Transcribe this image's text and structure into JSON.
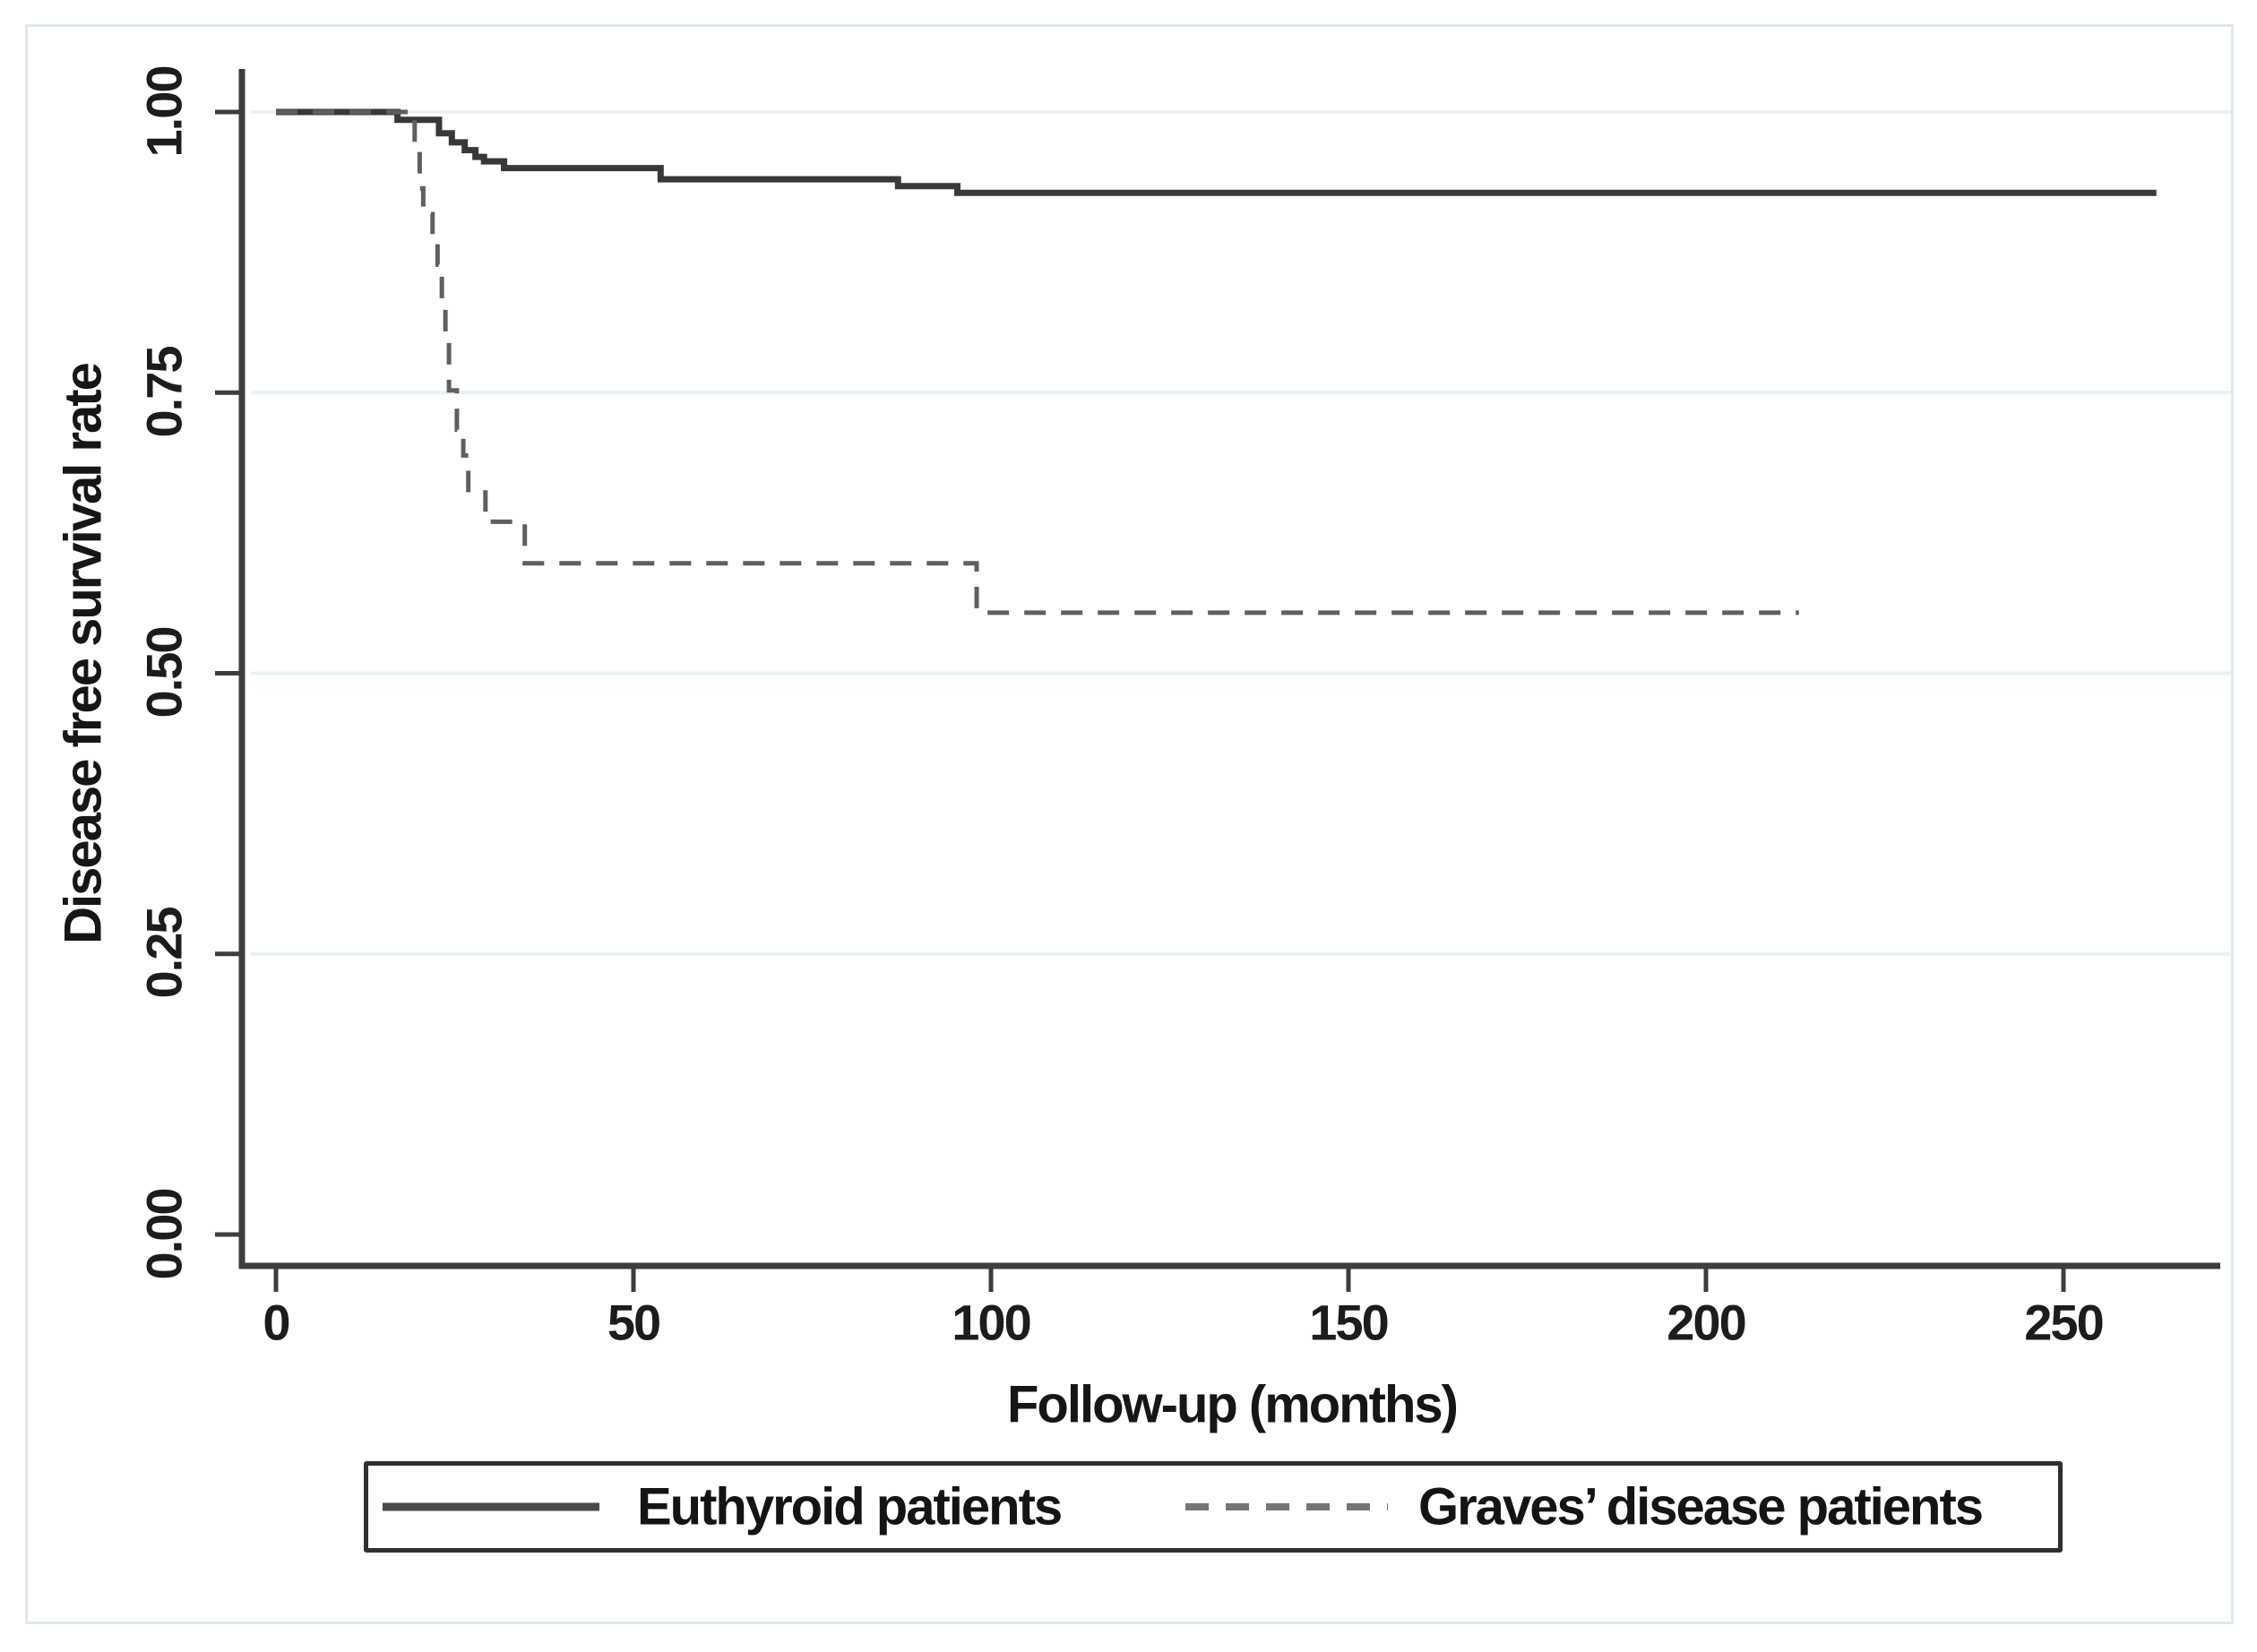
{
  "figure": {
    "kind": "kaplan-meier-survival-plot",
    "background": "#ffffff",
    "frame_border_color": "#dde9ee",
    "axis_color": "#3d3d3d",
    "grid_color": "#e8f2f3",
    "text_color": "#161616"
  },
  "chart_data": {
    "type": "line",
    "subtype": "kaplan-meier-step",
    "title": "",
    "xlabel": "Follow-up (months)",
    "ylabel": "Disease free survival rate",
    "xlim": [
      0,
      272
    ],
    "ylim": [
      0,
      1
    ],
    "x_ticks": [
      0,
      50,
      100,
      150,
      200,
      250
    ],
    "y_ticks": [
      0,
      0.25,
      0.5,
      0.75,
      1
    ],
    "x_tick_labels": [
      "0",
      "50",
      "100",
      "150",
      "200",
      "250"
    ],
    "y_tick_labels": [
      "0.00",
      "0.25",
      "0.50",
      "0.75",
      "1.00"
    ],
    "grid": "horizontal-light",
    "legend_position": "bottom-box",
    "series": [
      {
        "name": "Euthyroid patients",
        "line_style": "solid",
        "color": "#383838",
        "stroke_width": 7,
        "end_month": 263,
        "steps": [
          [
            0,
            1.0
          ],
          [
            17,
            0.993
          ],
          [
            22.8,
            0.981
          ],
          [
            24.6,
            0.973
          ],
          [
            26.4,
            0.966
          ],
          [
            27.9,
            0.96
          ],
          [
            29.1,
            0.956
          ],
          [
            31.9,
            0.95
          ],
          [
            53.8,
            0.94
          ],
          [
            87,
            0.934
          ],
          [
            95.3,
            0.928
          ]
        ]
      },
      {
        "name": "Graves’ disease patients",
        "line_style": "dashed",
        "color": "#5f5f5f",
        "stroke_width": 5,
        "dash": "24 17",
        "end_month": 213,
        "steps": [
          [
            0,
            1.0
          ],
          [
            19.4,
            0.966
          ],
          [
            20.1,
            0.932
          ],
          [
            20.6,
            0.909
          ],
          [
            21.9,
            0.886
          ],
          [
            22.6,
            0.864
          ],
          [
            23.2,
            0.83
          ],
          [
            23.7,
            0.795
          ],
          [
            24.2,
            0.752
          ],
          [
            25.3,
            0.717
          ],
          [
            26.2,
            0.694
          ],
          [
            26.9,
            0.661
          ],
          [
            29.3,
            0.635
          ],
          [
            34.8,
            0.598
          ],
          [
            98,
            0.554
          ]
        ]
      }
    ]
  },
  "legend": {
    "items": [
      {
        "label": "Euthyroid patients",
        "swatch": "solid-line"
      },
      {
        "label": "Graves’ disease patients",
        "swatch": "dashed-line"
      }
    ]
  }
}
